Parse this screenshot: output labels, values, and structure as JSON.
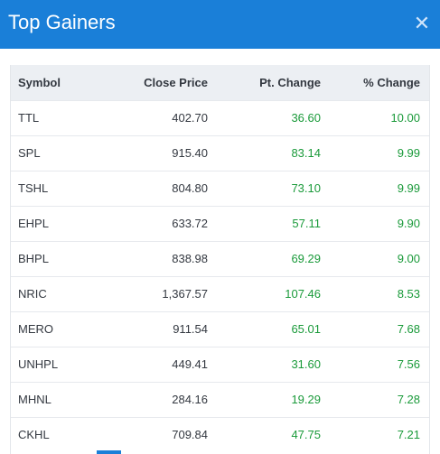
{
  "dialog": {
    "title": "Top Gainers",
    "close_icon": "close-icon"
  },
  "table": {
    "headers": {
      "symbol": "Symbol",
      "close": "Close Price",
      "pt": "Pt. Change",
      "pct": "% Change"
    },
    "rows": [
      {
        "symbol": "TTL",
        "close": "402.70",
        "pt": "36.60",
        "pct": "10.00"
      },
      {
        "symbol": "SPL",
        "close": "915.40",
        "pt": "83.14",
        "pct": "9.99"
      },
      {
        "symbol": "TSHL",
        "close": "804.80",
        "pt": "73.10",
        "pct": "9.99"
      },
      {
        "symbol": "EHPL",
        "close": "633.72",
        "pt": "57.11",
        "pct": "9.90"
      },
      {
        "symbol": "BHPL",
        "close": "838.98",
        "pt": "69.29",
        "pct": "9.00"
      },
      {
        "symbol": "NRIC",
        "close": "1,367.57",
        "pt": "107.46",
        "pct": "8.53"
      },
      {
        "symbol": "MERO",
        "close": "911.54",
        "pt": "65.01",
        "pct": "7.68"
      },
      {
        "symbol": "UNHPL",
        "close": "449.41",
        "pt": "31.60",
        "pct": "7.56"
      },
      {
        "symbol": "MHNL",
        "close": "284.16",
        "pt": "19.29",
        "pct": "7.28"
      },
      {
        "symbol": "CKHL",
        "close": "709.84",
        "pt": "47.75",
        "pct": "7.21"
      }
    ]
  },
  "colors": {
    "header_bg": "#1a7fd8",
    "positive": "#1a9a3a",
    "table_head_bg": "#eceff3"
  }
}
